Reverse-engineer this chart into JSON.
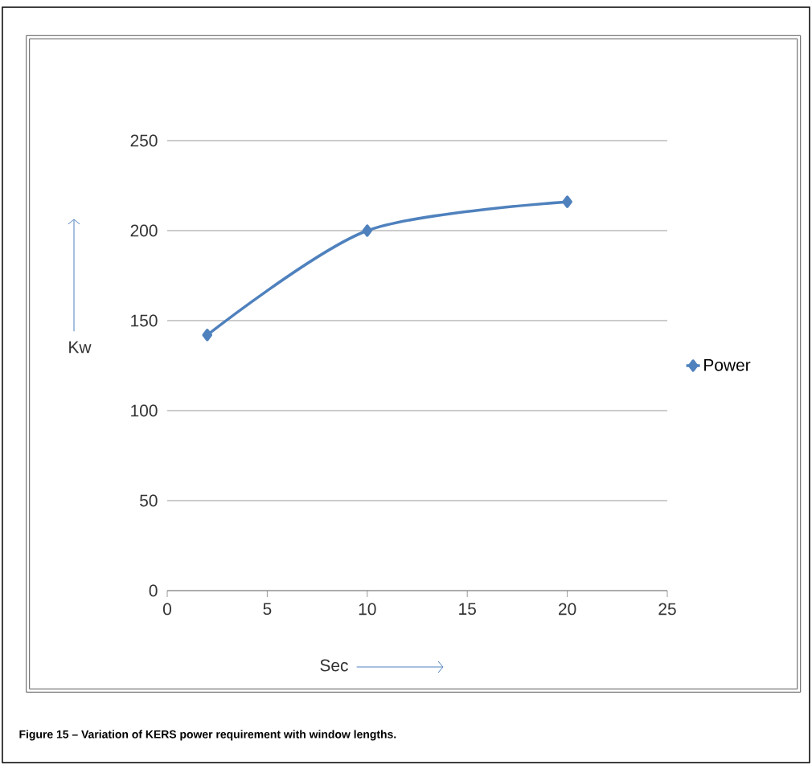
{
  "chart_data": {
    "type": "line",
    "xlabel": "Sec",
    "ylabel": "Kw",
    "x": [
      2,
      10,
      20
    ],
    "series": [
      {
        "name": "Power",
        "color": "#4f81bd",
        "values": [
          142,
          200,
          216
        ]
      }
    ],
    "xlim": [
      0,
      25
    ],
    "xticks": [
      0,
      5,
      10,
      15,
      20,
      25
    ],
    "ylim": [
      0,
      250
    ],
    "yticks": [
      0,
      50,
      100,
      150,
      200,
      250
    ],
    "grid": "y",
    "legend": "right",
    "marker": "diamond",
    "line_style": "solid",
    "annotations": [
      "Figure 15 – Variation of KERS power requirement with window lengths."
    ]
  }
}
